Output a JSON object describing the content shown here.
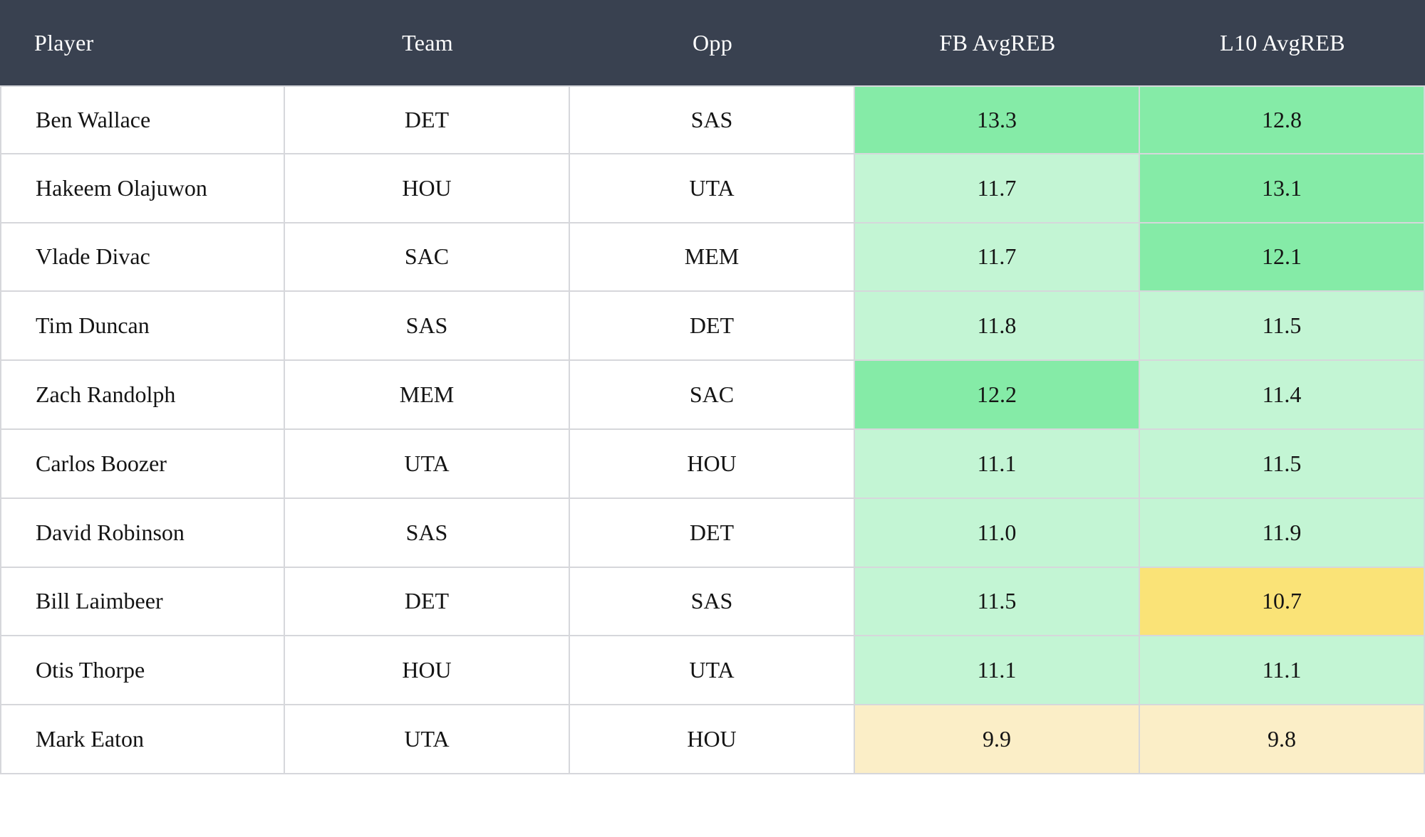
{
  "chart_data": {
    "type": "table",
    "columns": [
      "Player",
      "Team",
      "Opp",
      "FB AvgREB",
      "L10 AvgREB"
    ],
    "rows": [
      {
        "player": "Ben Wallace",
        "team": "DET",
        "opp": "SAS",
        "fb": "13.3",
        "fb_color": "#85EBA7",
        "l10": "12.8",
        "l10_color": "#85EBA7"
      },
      {
        "player": "Hakeem Olajuwon",
        "team": "HOU",
        "opp": "UTA",
        "fb": "11.7",
        "fb_color": "#C3F5D4",
        "l10": "13.1",
        "l10_color": "#85EBA7"
      },
      {
        "player": "Vlade Divac",
        "team": "SAC",
        "opp": "MEM",
        "fb": "11.7",
        "fb_color": "#C3F5D4",
        "l10": "12.1",
        "l10_color": "#85EBA7"
      },
      {
        "player": "Tim Duncan",
        "team": "SAS",
        "opp": "DET",
        "fb": "11.8",
        "fb_color": "#C3F5D4",
        "l10": "11.5",
        "l10_color": "#C3F5D4"
      },
      {
        "player": "Zach Randolph",
        "team": "MEM",
        "opp": "SAC",
        "fb": "12.2",
        "fb_color": "#85EBA7",
        "l10": "11.4",
        "l10_color": "#C3F5D4"
      },
      {
        "player": "Carlos Boozer",
        "team": "UTA",
        "opp": "HOU",
        "fb": "11.1",
        "fb_color": "#C3F5D4",
        "l10": "11.5",
        "l10_color": "#C3F5D4"
      },
      {
        "player": "David Robinson",
        "team": "SAS",
        "opp": "DET",
        "fb": "11.0",
        "fb_color": "#C3F5D4",
        "l10": "11.9",
        "l10_color": "#C3F5D4"
      },
      {
        "player": "Bill Laimbeer",
        "team": "DET",
        "opp": "SAS",
        "fb": "11.5",
        "fb_color": "#C3F5D4",
        "l10": "10.7",
        "l10_color": "#FAE377"
      },
      {
        "player": "Otis Thorpe",
        "team": "HOU",
        "opp": "UTA",
        "fb": "11.1",
        "fb_color": "#C3F5D4",
        "l10": "11.1",
        "l10_color": "#C3F5D4"
      },
      {
        "player": "Mark Eaton",
        "team": "UTA",
        "opp": "HOU",
        "fb": "9.9",
        "fb_color": "#FBEEC7",
        "l10": "9.8",
        "l10_color": "#FBEEC7"
      }
    ],
    "legend_position": "none",
    "grid": true
  },
  "colors": {
    "page_bg": "#ffffff",
    "header_bg": "#394150",
    "header_text": "#ffffff",
    "text": "#141414",
    "border": "#D6D7DB",
    "strong_green": "#85EBA7",
    "light_green": "#C3F5D4",
    "yellow": "#FAE377",
    "pale_yellow": "#FBEEC7"
  }
}
